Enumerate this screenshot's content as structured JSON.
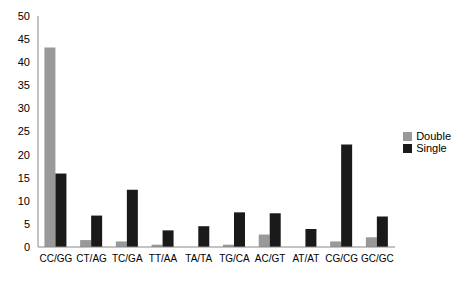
{
  "chart_data": {
    "type": "bar",
    "categories": [
      "CC/GG",
      "CT/AG",
      "TC/GA",
      "TT/AA",
      "TA/TA",
      "TG/CA",
      "AC/GT",
      "AT/AT",
      "CG/CG",
      "GC/GC"
    ],
    "series": [
      {
        "name": "Double",
        "color": "#999999",
        "values": [
          43.2,
          1.5,
          1.2,
          0.5,
          0,
          0.5,
          2.7,
          0,
          1.2,
          2.1
        ]
      },
      {
        "name": "Single",
        "color": "#1a1a1a",
        "values": [
          15.9,
          6.8,
          12.4,
          3.6,
          4.5,
          7.5,
          7.3,
          3.9,
          22.2,
          6.6
        ]
      }
    ],
    "ylim": [
      0,
      50
    ],
    "yticks": [
      0,
      5,
      10,
      15,
      20,
      25,
      30,
      35,
      40,
      45,
      50
    ],
    "grid": false,
    "legend": "right"
  }
}
